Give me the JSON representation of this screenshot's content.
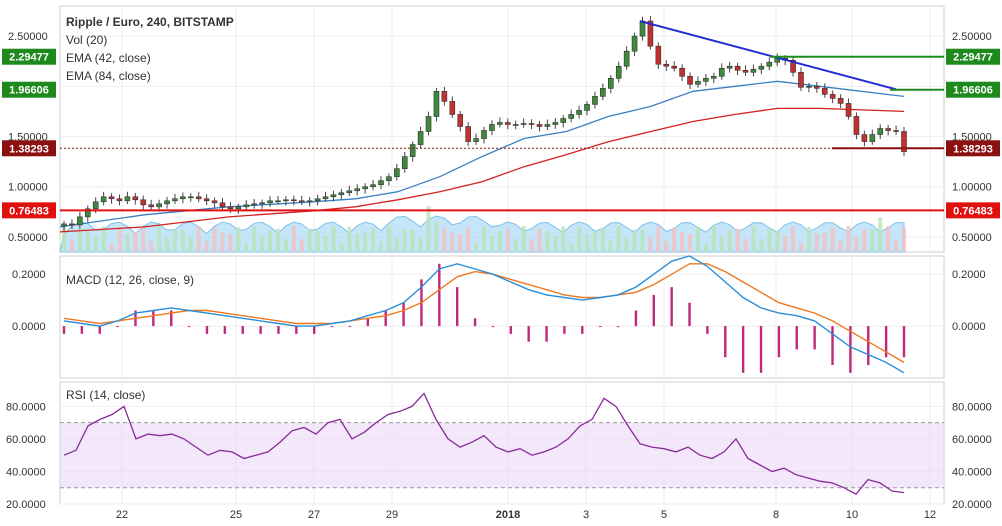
{
  "chart_data": {
    "type": "candlestick",
    "title": "Ripple / Euro, 240, BITSTAMP",
    "legend": [
      "Vol (20)",
      "EMA (42, close)",
      "EMA (84, close)"
    ],
    "x_ticks": [
      "22",
      "25",
      "27",
      "29",
      "2018",
      "3",
      "5",
      "8",
      "10",
      "12"
    ],
    "price_panel": {
      "ylim": [
        0.35,
        2.8
      ],
      "y_ticks": [
        "0.50000",
        "1.00000",
        "1.50000",
        "2.00000",
        "2.50000"
      ],
      "tick_values": [
        0.5,
        1.0,
        1.5,
        2.0,
        2.5
      ],
      "level_tags": [
        {
          "label": "2.29477",
          "value": 2.29477,
          "color": "#1e8a1e"
        },
        {
          "label": "1.96606",
          "value": 1.96606,
          "color": "#1e8a1e"
        },
        {
          "label": "1.38293",
          "value": 1.38293,
          "color": "#8b1010"
        },
        {
          "label": "0.76483",
          "value": 0.76483,
          "color": "#e01010"
        }
      ],
      "close_series": [
        0.63,
        0.62,
        0.7,
        0.78,
        0.85,
        0.9,
        0.88,
        0.86,
        0.9,
        0.87,
        0.82,
        0.8,
        0.83,
        0.86,
        0.88,
        0.9,
        0.9,
        0.88,
        0.86,
        0.84,
        0.8,
        0.78,
        0.8,
        0.82,
        0.83,
        0.84,
        0.86,
        0.86,
        0.87,
        0.86,
        0.85,
        0.86,
        0.88,
        0.9,
        0.92,
        0.94,
        0.96,
        0.98,
        1.0,
        1.02,
        1.06,
        1.1,
        1.18,
        1.3,
        1.42,
        1.55,
        1.7,
        1.95,
        1.85,
        1.72,
        1.6,
        1.45,
        1.48,
        1.56,
        1.62,
        1.64,
        1.62,
        1.62,
        1.63,
        1.62,
        1.6,
        1.62,
        1.64,
        1.68,
        1.72,
        1.76,
        1.82,
        1.9,
        1.98,
        2.08,
        2.2,
        2.35,
        2.5,
        2.65,
        2.4,
        2.22,
        2.2,
        2.18,
        2.1,
        2.02,
        2.05,
        2.08,
        2.1,
        2.18,
        2.2,
        2.16,
        2.14,
        2.17,
        2.2,
        2.24,
        2.28,
        2.26,
        2.14,
        1.99,
        2.0,
        1.98,
        1.92,
        1.88,
        1.83,
        1.7,
        1.52,
        1.45,
        1.52,
        1.58,
        1.56,
        1.55,
        1.35
      ],
      "ema42": {
        "x": [
          0,
          0.1,
          0.2,
          0.3,
          0.35,
          0.4,
          0.45,
          0.5,
          0.55,
          0.6,
          0.65,
          0.7,
          0.75,
          0.8,
          0.85,
          0.9,
          1.0
        ],
        "y": [
          0.6,
          0.72,
          0.8,
          0.85,
          0.88,
          0.95,
          1.1,
          1.3,
          1.48,
          1.55,
          1.7,
          1.8,
          1.95,
          2.0,
          2.05,
          2.0,
          1.9
        ]
      },
      "ema84": {
        "x": [
          0,
          0.1,
          0.2,
          0.3,
          0.35,
          0.4,
          0.45,
          0.5,
          0.55,
          0.6,
          0.65,
          0.7,
          0.75,
          0.8,
          0.85,
          0.9,
          1.0
        ],
        "y": [
          0.55,
          0.6,
          0.7,
          0.76,
          0.8,
          0.87,
          0.95,
          1.05,
          1.2,
          1.32,
          1.45,
          1.55,
          1.65,
          1.72,
          1.78,
          1.78,
          1.75
        ]
      }
    },
    "macd_panel": {
      "title": "MACD (12, 26, close, 9)",
      "y_ticks": [
        "0.0000",
        "0.2000"
      ],
      "tick_values": [
        0,
        0.2
      ],
      "ylim": [
        -0.2,
        0.27
      ],
      "macd": [
        0.02,
        0.01,
        0.0,
        0.02,
        0.05,
        0.06,
        0.07,
        0.06,
        0.05,
        0.04,
        0.03,
        0.02,
        0.01,
        0.0,
        0.0,
        0.01,
        0.02,
        0.04,
        0.06,
        0.09,
        0.15,
        0.22,
        0.24,
        0.22,
        0.2,
        0.17,
        0.14,
        0.12,
        0.11,
        0.1,
        0.11,
        0.12,
        0.15,
        0.2,
        0.25,
        0.27,
        0.23,
        0.17,
        0.11,
        0.07,
        0.05,
        0.04,
        0.02,
        -0.03,
        -0.08,
        -0.11,
        -0.14,
        -0.18
      ],
      "signal": [
        0.03,
        0.02,
        0.01,
        0.02,
        0.03,
        0.04,
        0.05,
        0.06,
        0.06,
        0.05,
        0.04,
        0.03,
        0.02,
        0.01,
        0.01,
        0.01,
        0.02,
        0.03,
        0.04,
        0.06,
        0.09,
        0.14,
        0.19,
        0.21,
        0.2,
        0.18,
        0.16,
        0.14,
        0.12,
        0.11,
        0.11,
        0.12,
        0.13,
        0.16,
        0.2,
        0.24,
        0.24,
        0.21,
        0.17,
        0.13,
        0.09,
        0.07,
        0.05,
        0.02,
        -0.02,
        -0.06,
        -0.1,
        -0.14
      ]
    },
    "rsi_panel": {
      "title": "RSI (14, close)",
      "y_ticks": [
        "20.0000",
        "40.0000",
        "60.0000",
        "80.0000"
      ],
      "tick_values": [
        20,
        40,
        60,
        80
      ],
      "ylim": [
        20,
        95
      ],
      "bands": [
        30,
        70
      ],
      "rsi": [
        50,
        53,
        68,
        72,
        75,
        80,
        60,
        63,
        62,
        63,
        60,
        55,
        50,
        53,
        52,
        48,
        50,
        52,
        58,
        65,
        67,
        63,
        70,
        72,
        60,
        64,
        70,
        75,
        77,
        80,
        88,
        72,
        60,
        55,
        58,
        62,
        55,
        52,
        54,
        50,
        52,
        55,
        60,
        68,
        72,
        85,
        80,
        68,
        57,
        55,
        54,
        52,
        55,
        50,
        48,
        52,
        60,
        48,
        44,
        40,
        42,
        38,
        36,
        34,
        33,
        30,
        26,
        35,
        33,
        28,
        27
      ]
    }
  }
}
